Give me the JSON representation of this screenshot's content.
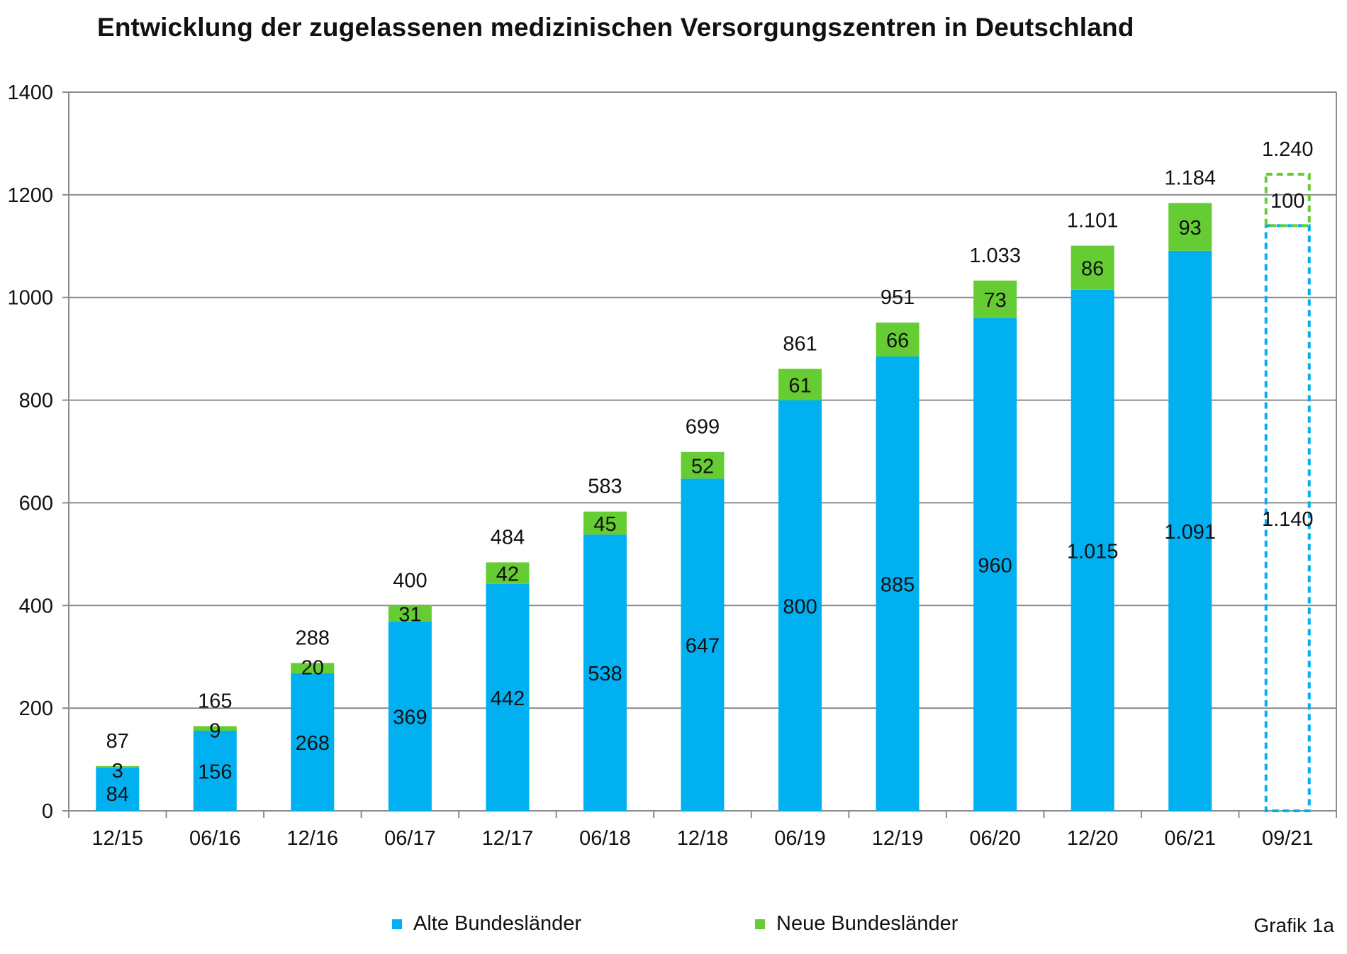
{
  "chart_data": {
    "type": "bar",
    "stacked": true,
    "title": "Entwicklung der zugelassenen medizinischen Versorgungszentren in Deutschland",
    "xlabel": "",
    "ylabel": "",
    "ylim": [
      0,
      1400
    ],
    "yticks": [
      0,
      200,
      400,
      600,
      800,
      1000,
      1200,
      1400
    ],
    "grid": true,
    "legend_position": "bottom",
    "categories": [
      "12/15",
      "06/16",
      "12/16",
      "06/17",
      "12/17",
      "06/18",
      "12/18",
      "06/19",
      "12/19",
      "06/20",
      "12/20",
      "06/21",
      "09/21"
    ],
    "series": [
      {
        "name": "Alte Bundesländer",
        "color": "#00b0f0",
        "values": [
          84,
          156,
          268,
          369,
          442,
          538,
          647,
          800,
          885,
          960,
          1015,
          1091,
          1140
        ],
        "labels": [
          "84",
          "156",
          "268",
          "369",
          "442",
          "538",
          "647",
          "800",
          "885",
          "960",
          "1.015",
          "1.091",
          "1.140"
        ]
      },
      {
        "name": "Neue Bundesländer",
        "color": "#66cc33",
        "values": [
          3,
          9,
          20,
          31,
          42,
          45,
          52,
          61,
          66,
          73,
          86,
          93,
          100
        ],
        "labels": [
          "3",
          "9",
          "20",
          "31",
          "42",
          "45",
          "52",
          "61",
          "66",
          "73",
          "86",
          "93",
          "100"
        ]
      }
    ],
    "totals": [
      87,
      165,
      288,
      400,
      484,
      583,
      699,
      861,
      951,
      1033,
      1101,
      1184,
      1240
    ],
    "total_labels": [
      "87",
      "165",
      "288",
      "400",
      "484",
      "583",
      "699",
      "861",
      "951",
      "1.033",
      "1.101",
      "1.184",
      "1.240"
    ],
    "projected_categories": [
      "09/21"
    ],
    "annotation": "Grafik 1a"
  }
}
